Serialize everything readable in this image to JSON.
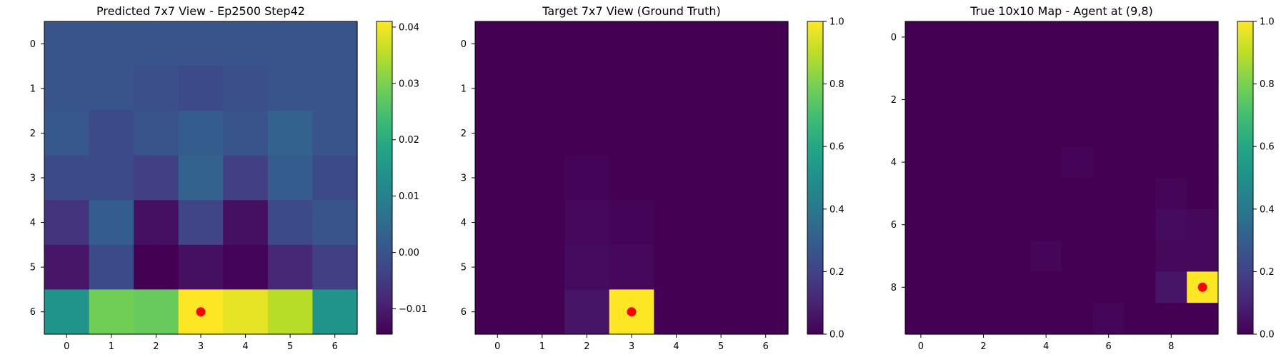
{
  "chart_data": [
    {
      "type": "heatmap",
      "title": "Predicted 7x7 View - Ep2500 Step42",
      "rows": 7,
      "cols": 7,
      "x_ticks": [
        0,
        1,
        2,
        3,
        4,
        5,
        6
      ],
      "y_ticks": [
        0,
        1,
        2,
        3,
        4,
        5,
        6
      ],
      "vmin": -0.0145,
      "vmax": 0.041,
      "colorbar_ticks": [
        {
          "value": -0.01,
          "label": "−0.01"
        },
        {
          "value": 0.0,
          "label": "0.00"
        },
        {
          "value": 0.01,
          "label": "0.01"
        },
        {
          "value": 0.02,
          "label": "0.02"
        },
        {
          "value": 0.03,
          "label": "0.03"
        },
        {
          "value": 0.04,
          "label": "0.04"
        }
      ],
      "values": [
        [
          0.0,
          0.0,
          0.0,
          0.0,
          0.0,
          0.0,
          0.0
        ],
        [
          0.0,
          0.0,
          -0.001,
          -0.002,
          -0.001,
          0.0,
          0.0
        ],
        [
          0.001,
          -0.002,
          0.0,
          0.002,
          0.0,
          0.003,
          0.0
        ],
        [
          -0.002,
          -0.002,
          -0.004,
          0.003,
          -0.004,
          0.002,
          -0.002
        ],
        [
          -0.006,
          0.002,
          -0.012,
          -0.003,
          -0.012,
          -0.002,
          0.0
        ],
        [
          -0.011,
          -0.002,
          -0.0145,
          -0.012,
          -0.014,
          -0.008,
          -0.004
        ],
        [
          0.014,
          0.029,
          0.028,
          0.041,
          0.039,
          0.035,
          0.014
        ]
      ],
      "marker": {
        "col": 3,
        "row": 6
      }
    },
    {
      "type": "heatmap",
      "title": "Target 7x7 View (Ground Truth)",
      "rows": 7,
      "cols": 7,
      "x_ticks": [
        0,
        1,
        2,
        3,
        4,
        5,
        6
      ],
      "y_ticks": [
        0,
        1,
        2,
        3,
        4,
        5,
        6
      ],
      "vmin": 0.0,
      "vmax": 1.0,
      "colorbar_ticks": [
        {
          "value": 0.0,
          "label": "0.0"
        },
        {
          "value": 0.2,
          "label": "0.2"
        },
        {
          "value": 0.4,
          "label": "0.4"
        },
        {
          "value": 0.6,
          "label": "0.6"
        },
        {
          "value": 0.8,
          "label": "0.8"
        },
        {
          "value": 1.0,
          "label": "1.0"
        }
      ],
      "values": [
        [
          0,
          0,
          0,
          0,
          0,
          0,
          0
        ],
        [
          0,
          0,
          0,
          0,
          0,
          0,
          0
        ],
        [
          0,
          0,
          0,
          0,
          0,
          0,
          0
        ],
        [
          0,
          0,
          0.01,
          0,
          0,
          0,
          0
        ],
        [
          0,
          0,
          0.02,
          0.01,
          0,
          0,
          0
        ],
        [
          0,
          0,
          0.03,
          0.02,
          0,
          0,
          0
        ],
        [
          0,
          0,
          0.06,
          1.0,
          0,
          0,
          0
        ]
      ],
      "marker": {
        "col": 3,
        "row": 6
      }
    },
    {
      "type": "heatmap",
      "title": "True 10x10 Map - Agent at (9,8)",
      "rows": 10,
      "cols": 10,
      "x_ticks": [
        0,
        2,
        4,
        6,
        8
      ],
      "y_ticks": [
        0,
        2,
        4,
        6,
        8
      ],
      "vmin": 0.0,
      "vmax": 1.0,
      "colorbar_ticks": [
        {
          "value": 0.0,
          "label": "0.0"
        },
        {
          "value": 0.2,
          "label": "0.2"
        },
        {
          "value": 0.4,
          "label": "0.4"
        },
        {
          "value": 0.6,
          "label": "0.6"
        },
        {
          "value": 0.8,
          "label": "0.8"
        },
        {
          "value": 1.0,
          "label": "1.0"
        }
      ],
      "values": [
        [
          0,
          0,
          0,
          0,
          0,
          0,
          0,
          0,
          0,
          0
        ],
        [
          0,
          0,
          0,
          0,
          0,
          0,
          0,
          0,
          0,
          0
        ],
        [
          0,
          0,
          0,
          0,
          0,
          0,
          0,
          0,
          0,
          0
        ],
        [
          0,
          0,
          0,
          0,
          0,
          0,
          0,
          0,
          0,
          0
        ],
        [
          0,
          0,
          0,
          0,
          0,
          0.01,
          0,
          0,
          0,
          0
        ],
        [
          0,
          0,
          0,
          0,
          0,
          0,
          0,
          0,
          0.015,
          0
        ],
        [
          0,
          0,
          0,
          0,
          0,
          0,
          0,
          0,
          0.03,
          0.02
        ],
        [
          0,
          0,
          0,
          0,
          0.015,
          0,
          0,
          0,
          0.02,
          0.02
        ],
        [
          0,
          0,
          0,
          0,
          0,
          0,
          0,
          0,
          0.06,
          1.0
        ],
        [
          0,
          0,
          0,
          0,
          0,
          0,
          0.015,
          0,
          0,
          0
        ]
      ],
      "marker": {
        "col": 9,
        "row": 8
      }
    }
  ]
}
